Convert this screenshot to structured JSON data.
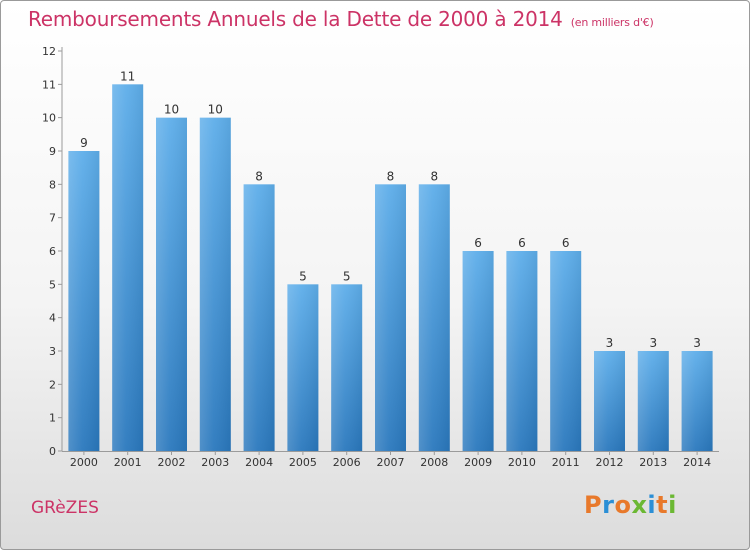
{
  "header": {
    "title": "Remboursements Annuels de la Dette de 2000 à 2014",
    "subtitle": "(en milliers d'€)"
  },
  "footer": {
    "commune": "GRèZES",
    "logo": "Proxiti",
    "logo_colors": [
      "#e8792b",
      "#2b8fd6",
      "#e8792b",
      "#6bb833",
      "#2b8fd6",
      "#e8792b",
      "#6bb833"
    ]
  },
  "chart_data": {
    "type": "bar",
    "categories": [
      "2000",
      "2001",
      "2002",
      "2003",
      "2004",
      "2005",
      "2006",
      "2007",
      "2008",
      "2009",
      "2010",
      "2011",
      "2012",
      "2013",
      "2014"
    ],
    "values": [
      9,
      11,
      10,
      10,
      8,
      5,
      5,
      8,
      8,
      6,
      6,
      6,
      3,
      3,
      3
    ],
    "ylim": [
      0,
      12
    ],
    "yticks": [
      0,
      1,
      2,
      3,
      4,
      5,
      6,
      7,
      8,
      9,
      10,
      11,
      12
    ],
    "grid": false,
    "bar_color_top": "#5eaeea",
    "bar_color_bottom": "#2a78bd"
  }
}
